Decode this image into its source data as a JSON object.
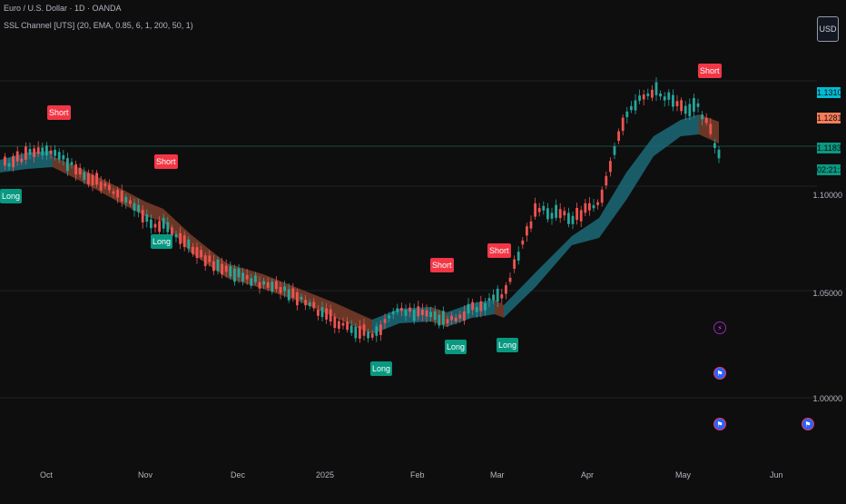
{
  "symbol": "Euro / U.S. Dollar · 1D · OANDA",
  "indicator": "SSL Channel [UTS] (20, EMA, 0.85, 6, 1, 200, 50, 1)",
  "currency_button": "USD",
  "price_tags": [
    {
      "value": "1.13105",
      "color": "#00bcd4"
    },
    {
      "value": "1.12811",
      "color": "#f77c5a"
    },
    {
      "value": "1.11834",
      "color": "#089981"
    },
    {
      "value": "02:21:22",
      "color": "#089981"
    }
  ],
  "price_axis": [
    {
      "value": "1.10000"
    },
    {
      "value": "1.05000"
    },
    {
      "value": "1.00000"
    }
  ],
  "time_axis": [
    "Oct",
    "Nov",
    "Dec",
    "2025",
    "Feb",
    "Mar",
    "Apr",
    "May",
    "Jun"
  ],
  "signals": [
    {
      "label": "Short",
      "kind": "short"
    },
    {
      "label": "Long",
      "kind": "long"
    },
    {
      "label": "Short",
      "kind": "short"
    },
    {
      "label": "Long",
      "kind": "long"
    },
    {
      "label": "Long",
      "kind": "long"
    },
    {
      "label": "Short",
      "kind": "short"
    },
    {
      "label": "Long",
      "kind": "long"
    },
    {
      "label": "Short",
      "kind": "short"
    },
    {
      "label": "Long",
      "kind": "long"
    },
    {
      "label": "Short",
      "kind": "short"
    }
  ],
  "colors": {
    "background": "#0e0e0f",
    "up_candle": "#26a69a",
    "down_candle": "#ef5350",
    "channel_bull": "#1b6a78",
    "channel_bear": "#7a3e2a"
  },
  "event_icons": [
    "lightning-icon",
    "flag-icon",
    "flag-icon",
    "flag-icon"
  ]
}
